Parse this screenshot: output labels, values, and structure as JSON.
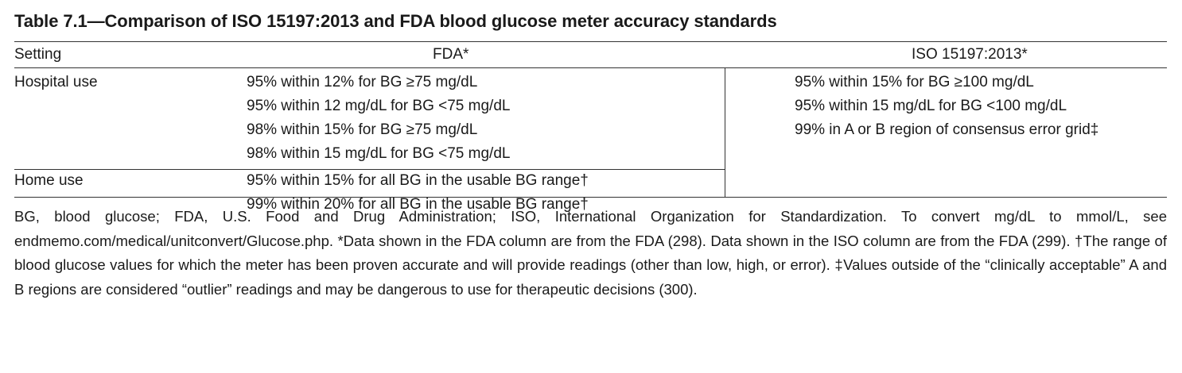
{
  "title": "Table 7.1—Comparison of ISO 15197:2013 and FDA blood glucose meter accuracy standards",
  "columns": {
    "setting": "Setting",
    "fda": "FDA*",
    "iso": "ISO 15197:2013*"
  },
  "rows": {
    "hospital": {
      "setting": "Hospital use",
      "fda": [
        "95% within 12% for BG ≥75 mg/dL",
        "95% within 12 mg/dL for BG <75 mg/dL",
        "98% within 15% for BG ≥75 mg/dL",
        "98% within 15 mg/dL for BG <75 mg/dL"
      ]
    },
    "home": {
      "setting": "Home use",
      "fda": [
        "95% within 15% for all BG in the usable BG range†",
        "99% within 20% for all BG in the usable BG range†"
      ]
    },
    "iso": [
      "95% within 15% for BG ≥100 mg/dL",
      "95% within 15 mg/dL for BG <100 mg/dL",
      "99% in A or B region of consensus error grid‡"
    ]
  },
  "footnote": "BG, blood glucose; FDA, U.S. Food and Drug Administration; ISO, International Organization for Standardization. To convert mg/dL to mmol/L, see endmemo.com/medical/unitconvert/Glucose.php. *Data shown in the FDA column are from the FDA (298). Data shown in the ISO column are from the FDA (299). †The range of blood glucose values for which the meter has been proven accurate and will provide readings (other than low, high, or error). ‡Values outside of the “clinically acceptable” A and B regions are considered “outlier” readings and may be dangerous to use for therapeutic decisions (300)."
}
